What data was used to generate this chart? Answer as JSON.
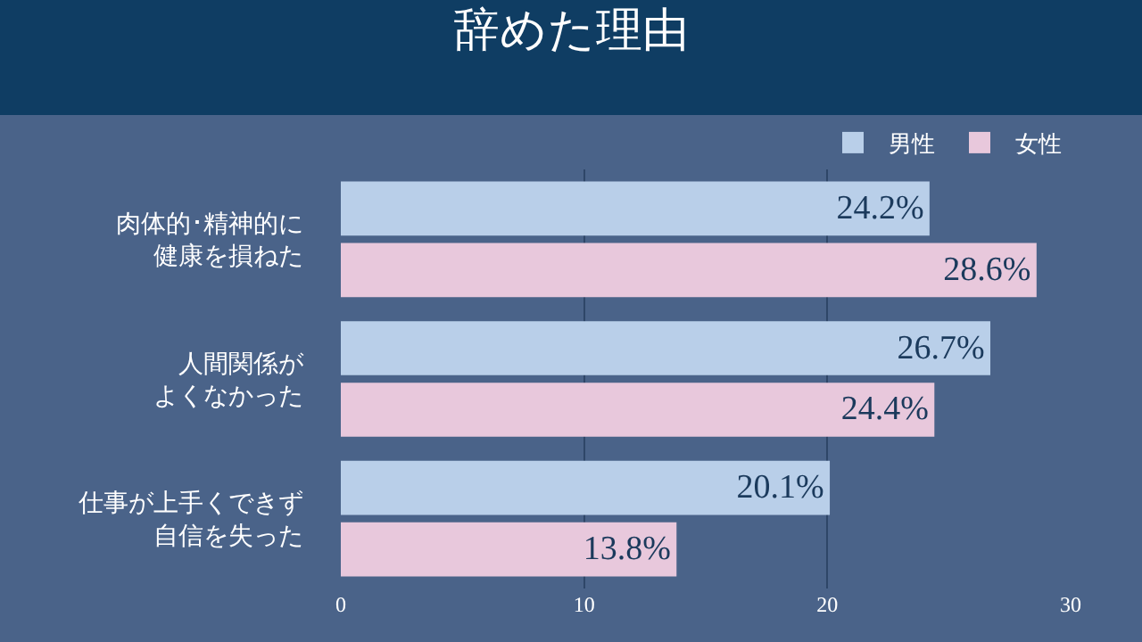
{
  "chart_data": {
    "type": "bar",
    "orientation": "horizontal",
    "title": "辞めた理由",
    "categories": [
      "肉体的･精神的に健康を損ねた",
      "人間関係がよくなかった",
      "仕事が上手くできず自信を失った"
    ],
    "series": [
      {
        "name": "男性",
        "color": "#b9cfe9",
        "values": [
          24.2,
          26.7,
          20.1
        ],
        "value_labels": [
          "24.2%",
          "26.7%",
          "20.1%"
        ]
      },
      {
        "name": "女性",
        "color": "#e8c8dc",
        "values": [
          28.6,
          24.4,
          13.8
        ],
        "value_labels": [
          "28.6%",
          "24.4%",
          "13.8%"
        ]
      }
    ],
    "xlim": [
      0,
      30
    ],
    "xticks": [
      0,
      10,
      20,
      30
    ],
    "grid": "x",
    "legend": "top right"
  }
}
